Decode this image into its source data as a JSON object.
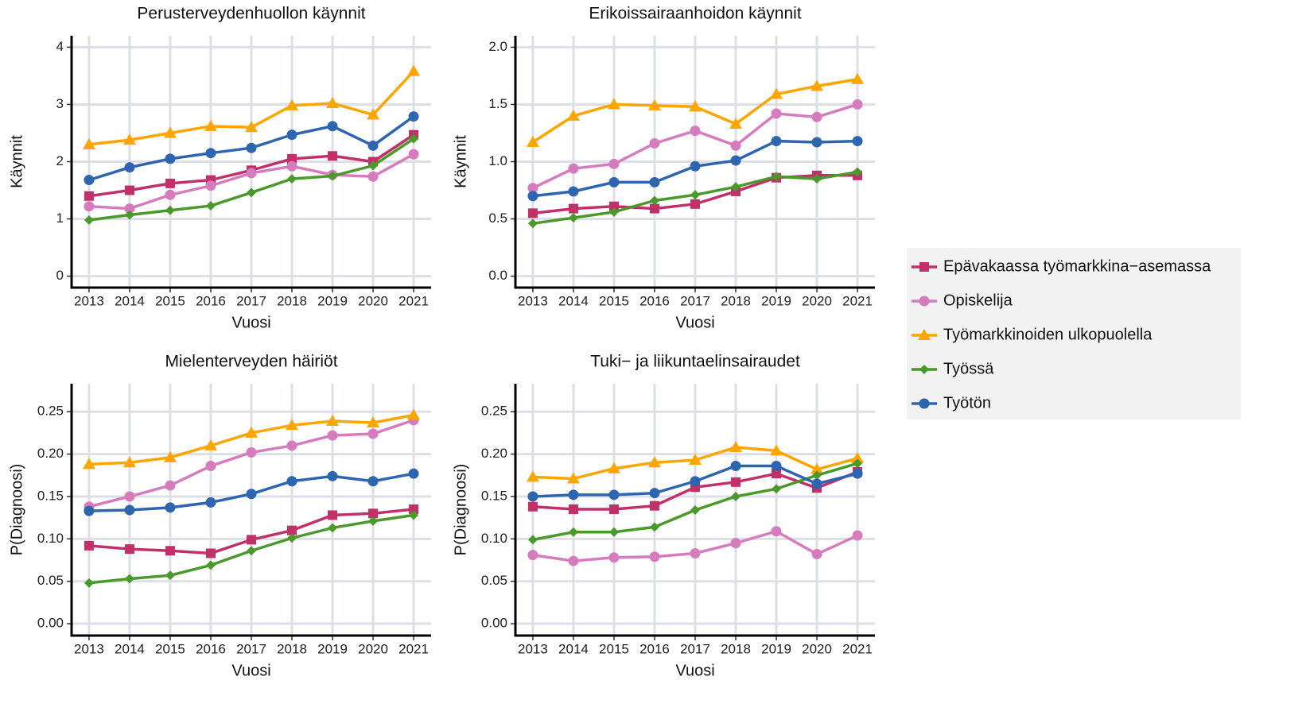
{
  "chart_data": [
    {
      "type": "line",
      "title": "Perusterveydenhuollon käynnit",
      "xlabel": "Vuosi",
      "ylabel": "Käynnit",
      "x": [
        2013,
        2014,
        2015,
        2016,
        2017,
        2018,
        2019,
        2020,
        2021
      ],
      "xlim": [
        2012.57,
        2021.43
      ],
      "xticks": [
        2013,
        2014,
        2015,
        2016,
        2017,
        2018,
        2019,
        2020,
        2021
      ],
      "ylim": [
        -0.2,
        4.2
      ],
      "yticks": [
        0,
        1,
        2,
        3,
        4
      ],
      "grid": true,
      "series": [
        {
          "values": [
            1.4,
            1.5,
            1.62,
            1.68,
            1.85,
            2.05,
            2.1,
            2.0,
            2.47
          ]
        },
        {
          "values": [
            1.22,
            1.18,
            1.42,
            1.58,
            1.8,
            1.92,
            1.77,
            1.74,
            2.13
          ]
        },
        {
          "values": [
            2.3,
            2.38,
            2.5,
            2.62,
            2.6,
            2.98,
            3.02,
            2.82,
            3.58
          ]
        },
        {
          "values": [
            0.98,
            1.07,
            1.15,
            1.23,
            1.46,
            1.7,
            1.75,
            1.93,
            2.4
          ]
        },
        {
          "values": [
            1.68,
            1.9,
            2.05,
            2.15,
            2.24,
            2.47,
            2.62,
            2.28,
            2.79
          ]
        }
      ]
    },
    {
      "type": "line",
      "title": "Erikoissairaanhoidon käynnit",
      "xlabel": "Vuosi",
      "ylabel": "Käynnit",
      "x": [
        2013,
        2014,
        2015,
        2016,
        2017,
        2018,
        2019,
        2020,
        2021
      ],
      "xlim": [
        2012.57,
        2021.43
      ],
      "xticks": [
        2013,
        2014,
        2015,
        2016,
        2017,
        2018,
        2019,
        2020,
        2021
      ],
      "ylim": [
        -0.1,
        2.1
      ],
      "yticks": [
        {
          "value": 0,
          "label": "0.0"
        },
        0.5,
        {
          "value": 1,
          "label": "1.0"
        },
        1.5,
        {
          "value": 2,
          "label": "2.0"
        }
      ],
      "grid": true,
      "series": [
        {
          "values": [
            0.55,
            0.59,
            0.61,
            0.59,
            0.63,
            0.74,
            0.86,
            0.88,
            0.88
          ]
        },
        {
          "values": [
            0.77,
            0.94,
            0.98,
            1.16,
            1.27,
            1.14,
            1.42,
            1.39,
            1.5
          ]
        },
        {
          "values": [
            1.17,
            1.4,
            1.5,
            1.49,
            1.48,
            1.33,
            1.59,
            1.66,
            1.72
          ]
        },
        {
          "values": [
            0.46,
            0.51,
            0.56,
            0.66,
            0.71,
            0.78,
            0.87,
            0.85,
            0.91
          ]
        },
        {
          "values": [
            0.7,
            0.74,
            0.82,
            0.82,
            0.96,
            1.01,
            1.18,
            1.17,
            1.18
          ]
        }
      ]
    },
    {
      "type": "line",
      "title": "Mielenterveyden häiriöt",
      "xlabel": "Vuosi",
      "ylabel": "P(Diagnoosi)",
      "x": [
        2013,
        2014,
        2015,
        2016,
        2017,
        2018,
        2019,
        2020,
        2021
      ],
      "xlim": [
        2012.57,
        2021.43
      ],
      "xticks": [
        2013,
        2014,
        2015,
        2016,
        2017,
        2018,
        2019,
        2020,
        2021
      ],
      "ylim": [
        -0.014,
        0.283
      ],
      "yticks": [
        {
          "value": 0,
          "label": "0.00"
        },
        0.05,
        {
          "value": 0.1,
          "label": "0.10"
        },
        0.15,
        {
          "value": 0.2,
          "label": "0.20"
        },
        0.25
      ],
      "grid": true,
      "series": [
        {
          "values": [
            0.092,
            0.088,
            0.086,
            0.083,
            0.099,
            0.11,
            0.128,
            0.13,
            0.135
          ]
        },
        {
          "values": [
            0.138,
            0.15,
            0.163,
            0.186,
            0.202,
            0.21,
            0.222,
            0.224,
            0.24
          ]
        },
        {
          "values": [
            0.188,
            0.19,
            0.196,
            0.21,
            0.225,
            0.234,
            0.239,
            0.237,
            0.246
          ]
        },
        {
          "values": [
            0.048,
            0.053,
            0.057,
            0.069,
            0.086,
            0.101,
            0.113,
            0.121,
            0.128
          ]
        },
        {
          "values": [
            0.133,
            0.134,
            0.137,
            0.143,
            0.153,
            0.168,
            0.174,
            0.168,
            0.177
          ]
        }
      ]
    },
    {
      "type": "line",
      "title": "Tuki− ja liikuntaelinsairaudet",
      "xlabel": "Vuosi",
      "ylabel": "P(Diagnoosi)",
      "x": [
        2013,
        2014,
        2015,
        2016,
        2017,
        2018,
        2019,
        2020,
        2021
      ],
      "xlim": [
        2012.57,
        2021.43
      ],
      "xticks": [
        2013,
        2014,
        2015,
        2016,
        2017,
        2018,
        2019,
        2020,
        2021
      ],
      "ylim": [
        -0.014,
        0.283
      ],
      "yticks": [
        {
          "value": 0,
          "label": "0.00"
        },
        0.05,
        {
          "value": 0.1,
          "label": "0.10"
        },
        0.15,
        {
          "value": 0.2,
          "label": "0.20"
        },
        0.25
      ],
      "grid": true,
      "series": [
        {
          "values": [
            0.138,
            0.135,
            0.135,
            0.139,
            0.161,
            0.167,
            0.177,
            0.16,
            0.179
          ]
        },
        {
          "values": [
            0.081,
            0.074,
            0.078,
            0.079,
            0.083,
            0.095,
            0.109,
            0.082,
            0.104
          ]
        },
        {
          "values": [
            0.173,
            0.171,
            0.183,
            0.19,
            0.193,
            0.208,
            0.204,
            0.182,
            0.195
          ]
        },
        {
          "values": [
            0.099,
            0.108,
            0.108,
            0.114,
            0.134,
            0.15,
            0.159,
            0.175,
            0.189
          ]
        },
        {
          "values": [
            0.15,
            0.152,
            0.152,
            0.154,
            0.168,
            0.186,
            0.186,
            0.165,
            0.177
          ]
        }
      ]
    }
  ],
  "legend": [
    {
      "name": "Epävakaassa työmarkkina−asemassa",
      "color": "#c2306a",
      "marker": "square"
    },
    {
      "name": "Opiskelija",
      "color": "#d67bbd",
      "marker": "circle"
    },
    {
      "name": "Työmarkkinoiden ulkopuolella",
      "color": "#ffa500",
      "marker": "triangle"
    },
    {
      "name": "Työssä",
      "color": "#4a9a2b",
      "marker": "diamond"
    },
    {
      "name": "Työtön",
      "color": "#2e65b0",
      "marker": "circle"
    }
  ]
}
